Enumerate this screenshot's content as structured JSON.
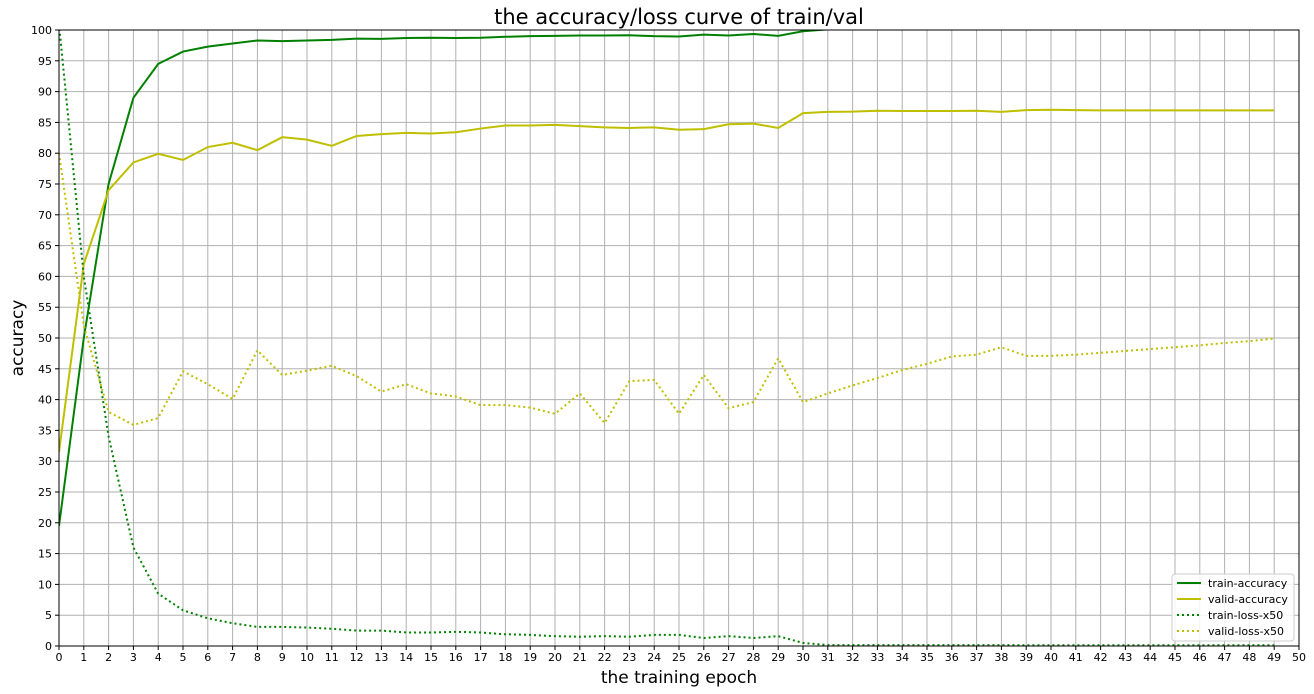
{
  "chart_data": {
    "type": "line",
    "title": "the accuracy/loss curve of train/val",
    "xlabel": "the training epoch",
    "ylabel": "accuracy",
    "xlim": [
      0,
      50
    ],
    "ylim": [
      0,
      100
    ],
    "xticks": [
      0,
      1,
      2,
      3,
      4,
      5,
      6,
      7,
      8,
      9,
      10,
      11,
      12,
      13,
      14,
      15,
      16,
      17,
      18,
      19,
      20,
      21,
      22,
      23,
      24,
      25,
      26,
      27,
      28,
      29,
      30,
      31,
      32,
      33,
      34,
      35,
      36,
      37,
      38,
      39,
      40,
      41,
      42,
      43,
      44,
      45,
      46,
      47,
      48,
      49,
      50
    ],
    "yticks": [
      0,
      5,
      10,
      15,
      20,
      25,
      30,
      35,
      40,
      45,
      50,
      55,
      60,
      65,
      70,
      75,
      80,
      85,
      90,
      95,
      100
    ],
    "grid": true,
    "legend_position": "lower-right",
    "x": [
      0,
      1,
      2,
      3,
      4,
      5,
      6,
      7,
      8,
      9,
      10,
      11,
      12,
      13,
      14,
      15,
      16,
      17,
      18,
      19,
      20,
      21,
      22,
      23,
      24,
      25,
      26,
      27,
      28,
      29,
      30,
      31,
      32,
      33,
      34,
      35,
      36,
      37,
      38,
      39,
      40,
      41,
      42,
      43,
      44,
      45,
      46,
      47,
      48,
      49
    ],
    "series": [
      {
        "name": "train-accuracy",
        "color": "#008000",
        "style": "solid",
        "values": [
          19.5,
          50,
          75,
          89,
          94.5,
          96.5,
          97.3,
          97.8,
          98.3,
          98.2,
          98.3,
          98.4,
          98.6,
          98.55,
          98.7,
          98.75,
          98.7,
          98.75,
          98.9,
          99,
          99.05,
          99.1,
          99.1,
          99.15,
          99,
          98.95,
          99.25,
          99.1,
          99.35,
          99.05,
          99.8,
          100.1,
          100.2,
          100.2,
          100.2,
          100.2,
          100.2,
          100.2,
          100.2,
          100.2,
          100.2,
          100.2,
          100.2,
          100.2,
          100.2,
          100.2,
          100.2,
          100.2,
          100.2,
          100.2
        ]
      },
      {
        "name": "valid-accuracy",
        "color": "#bfbf00",
        "style": "solid",
        "values": [
          31.5,
          62,
          74,
          78.5,
          79.9,
          78.9,
          81,
          81.7,
          80.5,
          82.6,
          82.2,
          81.2,
          82.8,
          83.1,
          83.3,
          83.2,
          83.4,
          84,
          84.5,
          84.5,
          84.6,
          84.4,
          84.2,
          84.1,
          84.2,
          83.8,
          83.9,
          84.7,
          84.8,
          84.1,
          86.5,
          86.7,
          86.75,
          86.9,
          86.85,
          86.85,
          86.85,
          86.9,
          86.7,
          87,
          87.05,
          87,
          86.95,
          86.95,
          86.95,
          86.95,
          86.95,
          86.95,
          86.95,
          86.95
        ]
      },
      {
        "name": "train-loss-x50",
        "color": "#008000",
        "style": "dotted",
        "values": [
          101,
          60,
          34,
          16,
          8.5,
          5.8,
          4.5,
          3.7,
          3.1,
          3.1,
          3,
          2.8,
          2.5,
          2.5,
          2.2,
          2.2,
          2.3,
          2.2,
          1.9,
          1.8,
          1.6,
          1.5,
          1.6,
          1.5,
          1.8,
          1.8,
          1.3,
          1.6,
          1.3,
          1.6,
          0.5,
          0.15,
          0.15,
          0.15,
          0.15,
          0.15,
          0.15,
          0.15,
          0.15,
          0.12,
          0.12,
          0.12,
          0.12,
          0.12,
          0.12,
          0.12,
          0.12,
          0.12,
          0.12,
          0.12
        ]
      },
      {
        "name": "valid-loss-x50",
        "color": "#bfbf00",
        "style": "dotted",
        "values": [
          80,
          52,
          38,
          35.9,
          37,
          44.6,
          42.5,
          40.1,
          48,
          44,
          44.7,
          45.5,
          43.8,
          41.3,
          42.5,
          41,
          40.5,
          39.1,
          39.1,
          38.7,
          37.7,
          41,
          36.2,
          43,
          43.2,
          37.7,
          44,
          38.6,
          39.6,
          46.7,
          39.6,
          41,
          42.3,
          43.5,
          44.8,
          45.8,
          47,
          47.3,
          48.5,
          47.1,
          47.1,
          47.3,
          47.6,
          47.9,
          48.2,
          48.5,
          48.8,
          49.2,
          49.5,
          49.9
        ]
      }
    ]
  }
}
